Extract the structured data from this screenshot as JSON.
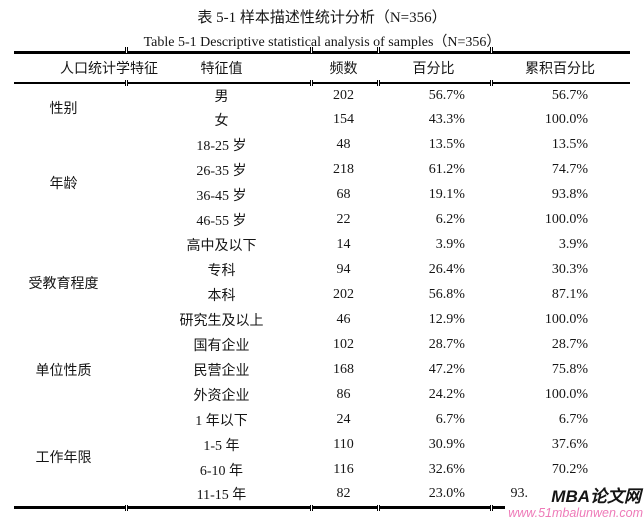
{
  "titles": {
    "zh": "表 5-1 样本描述性统计分析（N=356）",
    "en": "Table 5-1 Descriptive statistical analysis of samples（N=356）"
  },
  "table": {
    "headers": [
      "人口统计学特征",
      "特征值",
      "频数",
      "百分比",
      "累积百分比"
    ],
    "groups": [
      {
        "category": "性别",
        "rows": [
          {
            "value": "男",
            "freq": "202",
            "pct": "56.7%",
            "cum": "56.7%"
          },
          {
            "value": "女",
            "freq": "154",
            "pct": "43.3%",
            "cum": "100.0%"
          }
        ]
      },
      {
        "category": "年龄",
        "rows": [
          {
            "value": "18-25 岁",
            "freq": "48",
            "pct": "13.5%",
            "cum": "13.5%"
          },
          {
            "value": "26-35 岁",
            "freq": "218",
            "pct": "61.2%",
            "cum": "74.7%"
          },
          {
            "value": "36-45 岁",
            "freq": "68",
            "pct": "19.1%",
            "cum": "93.8%"
          },
          {
            "value": "46-55 岁",
            "freq": "22",
            "pct": "6.2%",
            "cum": "100.0%"
          }
        ]
      },
      {
        "category": "受教育程度",
        "rows": [
          {
            "value": "高中及以下",
            "freq": "14",
            "pct": "3.9%",
            "cum": "3.9%"
          },
          {
            "value": "专科",
            "freq": "94",
            "pct": "26.4%",
            "cum": "30.3%"
          },
          {
            "value": "本科",
            "freq": "202",
            "pct": "56.8%",
            "cum": "87.1%"
          },
          {
            "value": "研究生及以上",
            "freq": "46",
            "pct": "12.9%",
            "cum": "100.0%"
          }
        ]
      },
      {
        "category": "单位性质",
        "rows": [
          {
            "value": "国有企业",
            "freq": "102",
            "pct": "28.7%",
            "cum": "28.7%"
          },
          {
            "value": "民营企业",
            "freq": "168",
            "pct": "47.2%",
            "cum": "75.8%"
          },
          {
            "value": "外资企业",
            "freq": "86",
            "pct": "24.2%",
            "cum": "100.0%"
          }
        ]
      },
      {
        "category": "工作年限",
        "rows": [
          {
            "value": "1 年以下",
            "freq": "24",
            "pct": "6.7%",
            "cum": "6.7%"
          },
          {
            "value": "1-5 年",
            "freq": "110",
            "pct": "30.9%",
            "cum": "37.6%"
          },
          {
            "value": "6-10 年",
            "freq": "116",
            "pct": "32.6%",
            "cum": "70.2%"
          },
          {
            "value": "11-15 年",
            "freq": "82",
            "pct": "23.0%",
            "cum": "93.",
            "cum_obscured": true
          }
        ]
      }
    ]
  },
  "watermark": {
    "brand": "MBA论文网",
    "url": "www.51mbalunwen.com",
    "url_color": "#ee7ab8"
  }
}
